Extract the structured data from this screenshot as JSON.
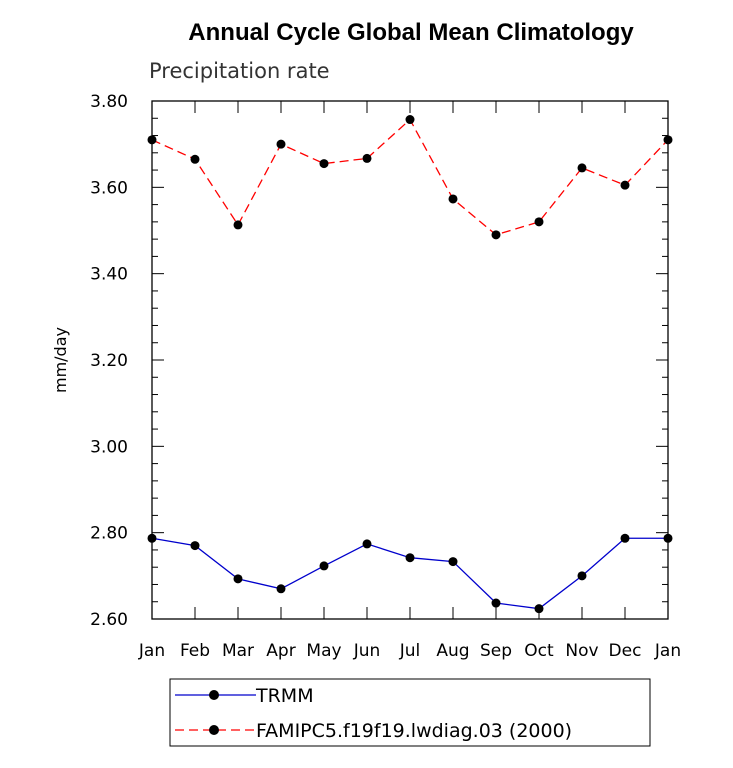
{
  "chart_data": {
    "type": "line",
    "title": "Annual Cycle Global Mean Climatology",
    "subtitle": "Precipitation rate",
    "xlabel": "",
    "ylabel": "mm/day",
    "categories": [
      "Jan",
      "Feb",
      "Mar",
      "Apr",
      "May",
      "Jun",
      "Jul",
      "Aug",
      "Sep",
      "Oct",
      "Nov",
      "Dec",
      "Jan"
    ],
    "ylim": [
      2.6,
      3.8
    ],
    "yticks": [
      "2.60",
      "2.80",
      "3.00",
      "3.20",
      "3.40",
      "3.60",
      "3.80"
    ],
    "series": [
      {
        "name": "TRMM",
        "color": "#0000cc",
        "dash": "solid",
        "marker": "circle",
        "values": [
          2.787,
          2.77,
          2.693,
          2.67,
          2.723,
          2.774,
          2.742,
          2.733,
          2.637,
          2.624,
          2.7,
          2.787,
          2.787
        ]
      },
      {
        "name": "FAMIPC5.f19f19.lwdiag.03 (2000)",
        "color": "#ff0000",
        "dash": "dashed",
        "marker": "circle",
        "values": [
          3.71,
          3.665,
          3.513,
          3.7,
          3.655,
          3.667,
          3.757,
          3.573,
          3.49,
          3.52,
          3.645,
          3.605,
          3.71
        ]
      }
    ],
    "grid": false,
    "legend_position": "bottom-center"
  }
}
